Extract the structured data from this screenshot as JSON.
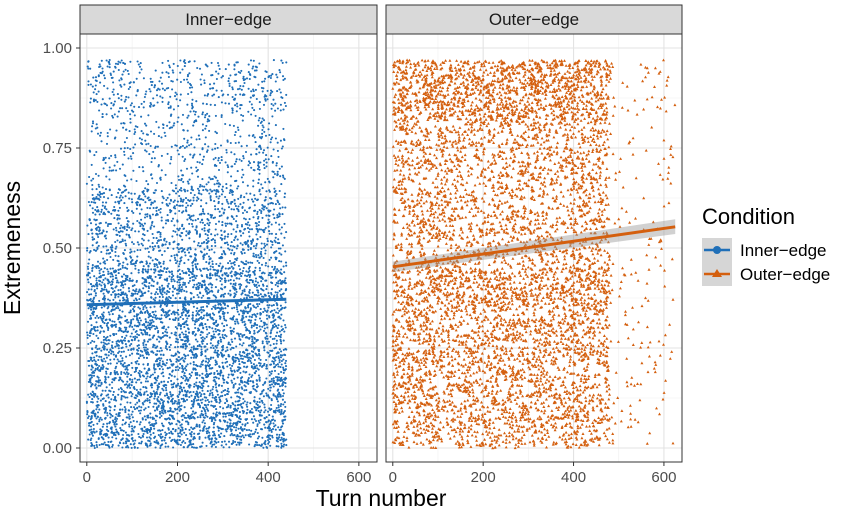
{
  "chart_data": {
    "type": "scatter",
    "ylabel": "Extremeness",
    "xlabel": "Turn number",
    "xlim": [
      -15,
      640
    ],
    "ylim": [
      -0.035,
      1.035
    ],
    "x_ticks": [
      0,
      200,
      400,
      600
    ],
    "x_tick_labels": [
      "0",
      "200",
      "400",
      "600"
    ],
    "y_ticks": [
      0.0,
      0.25,
      0.5,
      0.75,
      1.0
    ],
    "y_tick_labels": [
      "0.00",
      "0.25",
      "0.50",
      "0.75",
      "1.00"
    ],
    "grid": true,
    "legend": {
      "title": "Condition",
      "position": "right",
      "entries": [
        {
          "label": "Inner−edge",
          "color": "#1f6fb8",
          "shape": "circle"
        },
        {
          "label": "Outer−edge",
          "color": "#d45f0e",
          "shape": "triangle"
        }
      ]
    },
    "panels": [
      {
        "strip_label": "Inner−edge",
        "color": "#1f6fb8",
        "shape": "circle",
        "x_range": [
          0,
          440
        ],
        "point_count_estimate": 6000,
        "point_seed": 7,
        "y_distribution": [
          {
            "from": 0.0,
            "to": 0.05,
            "weight": 1.8
          },
          {
            "from": 0.05,
            "to": 0.3,
            "weight": 1.6
          },
          {
            "from": 0.3,
            "to": 0.45,
            "weight": 1.7
          },
          {
            "from": 0.45,
            "to": 0.65,
            "weight": 1.0
          },
          {
            "from": 0.65,
            "to": 0.85,
            "weight": 0.45
          },
          {
            "from": 0.85,
            "to": 0.97,
            "weight": 0.55
          }
        ],
        "trend": {
          "x": [
            0,
            440
          ],
          "y": [
            0.358,
            0.372
          ]
        }
      },
      {
        "strip_label": "Outer−edge",
        "color": "#d45f0e",
        "shape": "triangle",
        "x_range": [
          0,
          625
        ],
        "point_count_estimate": 6500,
        "point_seed": 19,
        "y_distribution": [
          {
            "from": 0.0,
            "to": 0.05,
            "weight": 1.0
          },
          {
            "from": 0.05,
            "to": 0.35,
            "weight": 1.3
          },
          {
            "from": 0.35,
            "to": 0.45,
            "weight": 1.6
          },
          {
            "from": 0.45,
            "to": 0.82,
            "weight": 1.0
          },
          {
            "from": 0.82,
            "to": 0.97,
            "weight": 1.9
          }
        ],
        "trend": {
          "x": [
            0,
            625
          ],
          "y": [
            0.453,
            0.553
          ]
        },
        "trend_band": {
          "x": [
            0,
            625
          ],
          "y_low": [
            0.44,
            0.535
          ],
          "y_high": [
            0.466,
            0.572
          ]
        }
      }
    ]
  }
}
